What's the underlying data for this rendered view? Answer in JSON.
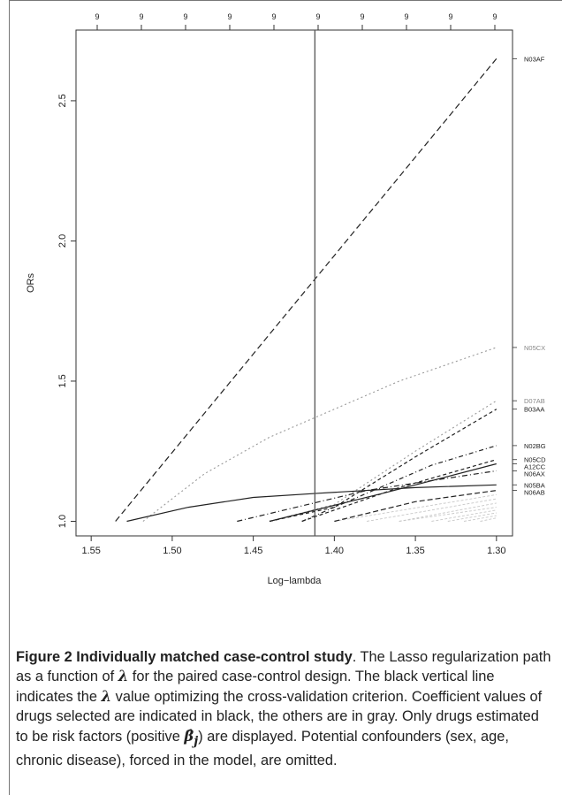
{
  "chart_data": {
    "type": "line",
    "xlabel": "Log−lambda",
    "ylabel": "ORs",
    "x_ticks": [
      1.55,
      1.5,
      1.45,
      1.4,
      1.35,
      1.3
    ],
    "x_tick_labels": [
      "1.55",
      "1.50",
      "1.45",
      "1.40",
      "1.35",
      "1.30"
    ],
    "y_ticks": [
      1.0,
      1.5,
      2.0,
      2.5
    ],
    "y_tick_labels": [
      "1.0",
      "1.5",
      "2.0",
      "2.5"
    ],
    "xlim": [
      1.555,
      1.295
    ],
    "ylim": [
      0.97,
      2.73
    ],
    "x_reversed": true,
    "top_axis_labels": [
      "9",
      "9",
      "9",
      "9",
      "9",
      "9",
      "9",
      "9",
      "9",
      "9"
    ],
    "vertical_line_x": 1.412,
    "series": [
      {
        "name": "N03AF",
        "selected": true,
        "dash": "7,4",
        "x": [
          1.535,
          1.3
        ],
        "y": [
          1.0,
          2.65
        ]
      },
      {
        "name": "N05CX",
        "selected": false,
        "dash": "2,3",
        "x": [
          1.518,
          1.48,
          1.44,
          1.4,
          1.36,
          1.3
        ],
        "y": [
          1.0,
          1.17,
          1.3,
          1.4,
          1.5,
          1.62
        ]
      },
      {
        "name": "D07AB",
        "selected": false,
        "dash": "2,3",
        "x": [
          1.44,
          1.4,
          1.35,
          1.3
        ],
        "y": [
          1.0,
          1.06,
          1.25,
          1.43
        ]
      },
      {
        "name": "B03AA",
        "selected": true,
        "dash": "4,3",
        "x": [
          1.44,
          1.4,
          1.35,
          1.3
        ],
        "y": [
          1.0,
          1.05,
          1.23,
          1.4
        ]
      },
      {
        "name": "N02BG",
        "selected": true,
        "dash": "5,3,1,3",
        "x": [
          1.42,
          1.38,
          1.34,
          1.3
        ],
        "y": [
          1.0,
          1.1,
          1.2,
          1.27
        ]
      },
      {
        "name": "N05CD",
        "selected": true,
        "dash": "4,3",
        "x": [
          1.42,
          1.36,
          1.3
        ],
        "y": [
          1.0,
          1.12,
          1.22
        ]
      },
      {
        "name": "A12CC",
        "selected": true,
        "dash": "",
        "x": [
          1.44,
          1.37,
          1.3
        ],
        "y": [
          1.0,
          1.1,
          1.205
        ]
      },
      {
        "name": "N06AX",
        "selected": true,
        "dash": "6,3,1,3",
        "x": [
          1.46,
          1.38,
          1.3
        ],
        "y": [
          1.0,
          1.11,
          1.18
        ]
      },
      {
        "name": "N05BA",
        "selected": true,
        "dash": "",
        "x": [
          1.528,
          1.49,
          1.45,
          1.41,
          1.35,
          1.3
        ],
        "y": [
          1.0,
          1.05,
          1.085,
          1.1,
          1.12,
          1.13
        ]
      },
      {
        "name": "N06AB",
        "selected": true,
        "dash": "6,3",
        "x": [
          1.4,
          1.35,
          1.3
        ],
        "y": [
          1.0,
          1.07,
          1.11
        ]
      }
    ],
    "gray_lines": [
      {
        "x": [
          1.4,
          1.3
        ],
        "y": [
          1.0,
          1.095
        ]
      },
      {
        "x": [
          1.38,
          1.3
        ],
        "y": [
          1.0,
          1.08
        ]
      },
      {
        "x": [
          1.36,
          1.3
        ],
        "y": [
          1.0,
          1.065
        ]
      },
      {
        "x": [
          1.36,
          1.3
        ],
        "y": [
          1.0,
          1.05
        ]
      },
      {
        "x": [
          1.34,
          1.3
        ],
        "y": [
          1.0,
          1.04
        ]
      },
      {
        "x": [
          1.33,
          1.3
        ],
        "y": [
          1.0,
          1.03
        ]
      },
      {
        "x": [
          1.32,
          1.3
        ],
        "y": [
          1.0,
          1.02
        ]
      },
      {
        "x": [
          1.31,
          1.3
        ],
        "y": [
          1.0,
          1.012
        ]
      }
    ]
  },
  "caption": {
    "title": "Figure 2 Individually matched case-control study",
    "text_before_lambda_1": ". The Lasso regularization path as a function of ",
    "lambda_symbol": "λ",
    "text_after_lambda_1": " for the paired case-control design. The black vertical line indicates the ",
    "text_after_lambda_2": " value optimizing the cross-validation criterion. Coefficient values of drugs selected are indicated in black, the others are in gray. Only drugs estimated to be risk factors (positive ",
    "beta_symbol": "β̂",
    "beta_subscript": "j",
    "text_end": ") are displayed. Potential confounders (sex, age, chronic disease), forced in the model, are omitted."
  }
}
